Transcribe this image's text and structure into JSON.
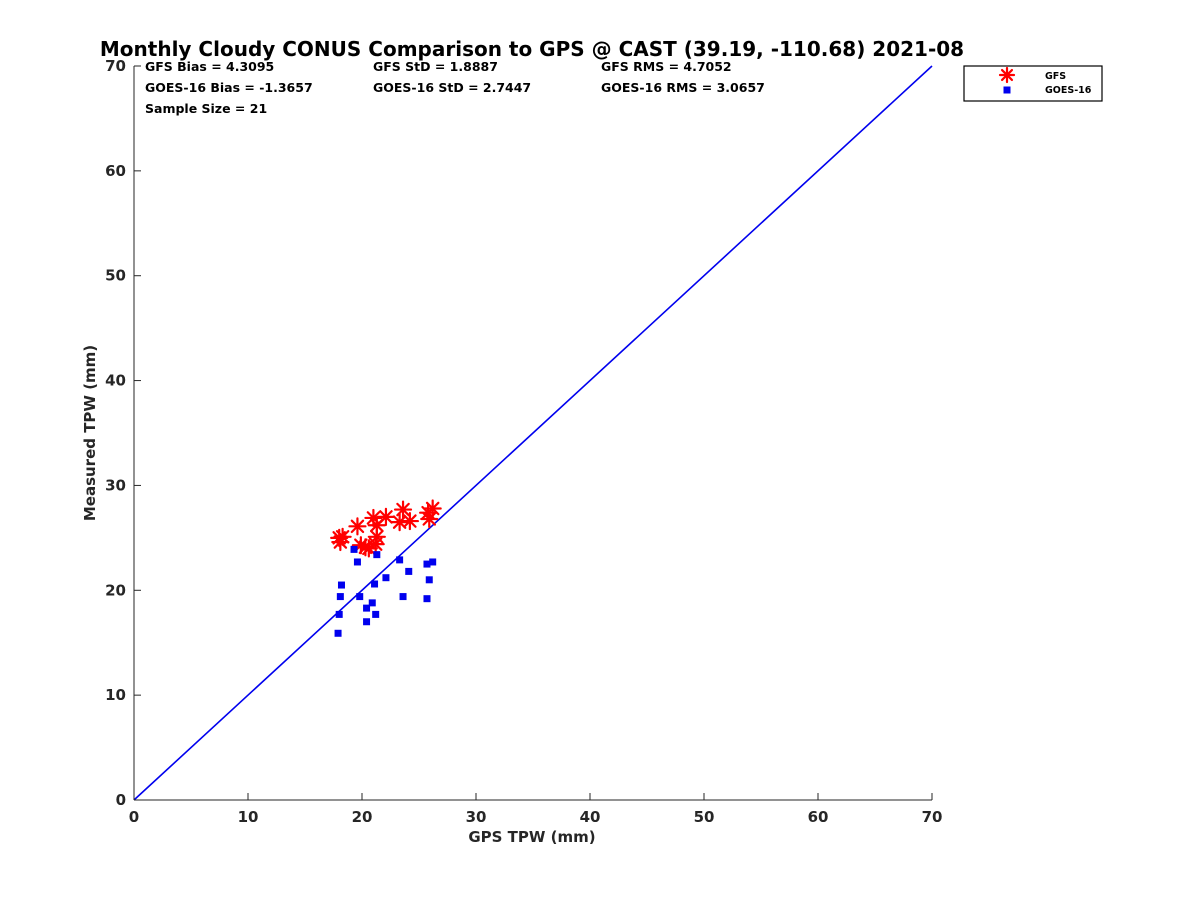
{
  "chart_data": {
    "type": "scatter",
    "title": "Monthly Cloudy CONUS Comparison to GPS @ CAST (39.19, -110.68) 2021-08",
    "xlabel": "GPS TPW (mm)",
    "ylabel": "Measured TPW (mm)",
    "xlim": [
      0,
      70
    ],
    "ylim": [
      0,
      70
    ],
    "xticks": [
      "0",
      "10",
      "20",
      "30",
      "40",
      "50",
      "60",
      "70"
    ],
    "yticks": [
      "0",
      "10",
      "20",
      "30",
      "40",
      "50",
      "60",
      "70"
    ],
    "grid": false,
    "legend_position": "top-right",
    "stats": {
      "gfs_bias": "GFS Bias = 4.3095",
      "gfs_std": "GFS StD = 1.8887",
      "gfs_rms": "GFS RMS = 4.7052",
      "goes_bias": "GOES-16 Bias = -1.3657",
      "goes_std": "GOES-16 StD = 2.7447",
      "goes_rms": "GOES-16 RMS = 3.0657",
      "sample_size": "Sample Size = 21"
    },
    "reference_line": {
      "x": [
        0,
        70
      ],
      "y": [
        0,
        70
      ],
      "color": "#0000ee"
    },
    "series": [
      {
        "name": "GFS",
        "marker": "asterisk",
        "color": "#ff0000",
        "points": [
          [
            18.0,
            25.0
          ],
          [
            18.1,
            24.6
          ],
          [
            18.3,
            25.1
          ],
          [
            19.6,
            26.1
          ],
          [
            19.9,
            24.3
          ],
          [
            20.3,
            24.1
          ],
          [
            20.6,
            24.0
          ],
          [
            21.0,
            26.9
          ],
          [
            21.2,
            24.4
          ],
          [
            21.3,
            25.1
          ],
          [
            21.3,
            26.2
          ],
          [
            22.1,
            27.0
          ],
          [
            23.3,
            26.5
          ],
          [
            23.6,
            27.7
          ],
          [
            24.2,
            26.6
          ],
          [
            25.8,
            27.4
          ],
          [
            25.9,
            26.8
          ],
          [
            26.2,
            27.8
          ]
        ]
      },
      {
        "name": "GOES-16",
        "marker": "square",
        "color": "#0000ee",
        "points": [
          [
            17.9,
            15.9
          ],
          [
            18.0,
            17.7
          ],
          [
            18.1,
            19.4
          ],
          [
            18.2,
            20.5
          ],
          [
            19.3,
            23.9
          ],
          [
            19.6,
            22.7
          ],
          [
            19.8,
            19.4
          ],
          [
            20.4,
            17.0
          ],
          [
            20.4,
            18.3
          ],
          [
            20.9,
            18.8
          ],
          [
            21.1,
            20.6
          ],
          [
            21.2,
            17.7
          ],
          [
            21.3,
            23.4
          ],
          [
            22.1,
            21.2
          ],
          [
            23.3,
            22.9
          ],
          [
            23.6,
            19.4
          ],
          [
            24.1,
            21.8
          ],
          [
            25.7,
            22.5
          ],
          [
            25.7,
            19.2
          ],
          [
            25.9,
            21.0
          ],
          [
            26.2,
            22.7
          ]
        ]
      }
    ]
  }
}
